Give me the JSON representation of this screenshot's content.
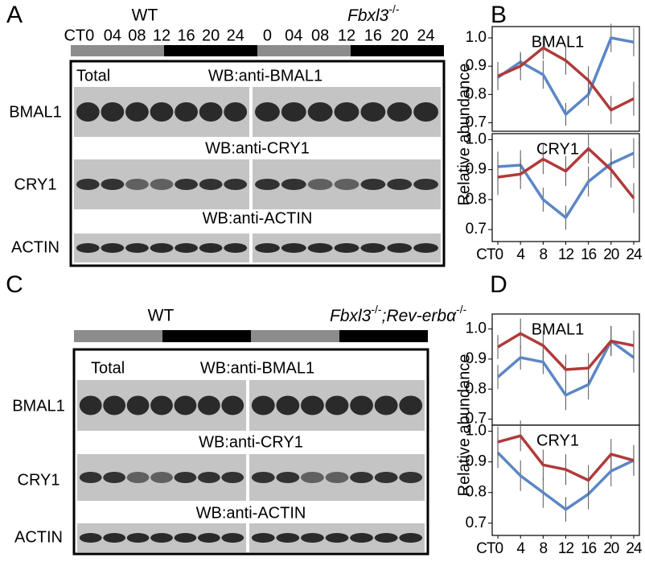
{
  "figure": {
    "blot_panels": [
      {
        "letter": "A",
        "wt_label": "WT",
        "mutant_label": [
          "Fbxl3",
          "-/-"
        ],
        "lanes": [
          "CT0",
          "04",
          "08",
          "12",
          "16",
          "20",
          "24",
          "0",
          "04",
          "08",
          "12",
          "16",
          "20",
          "24"
        ],
        "total": "Total",
        "rows": [
          {
            "header": "WB:anti-BMAL1",
            "label": "BMAL1"
          },
          {
            "header": "WB:anti-CRY1",
            "label": "CRY1"
          },
          {
            "header": "WB:anti-ACTIN",
            "label": "ACTIN"
          }
        ]
      },
      {
        "letter": "C",
        "wt_label": "WT",
        "mutant_label": [
          "Fbxl3",
          "-/-",
          ";Rev-erbα",
          "-/-"
        ],
        "total": "Total",
        "rows": [
          {
            "header": "WB:anti-BMAL1",
            "label": "BMAL1"
          },
          {
            "header": "WB:anti-CRY1",
            "label": "CRY1"
          },
          {
            "header": "WB:anti-ACTIN",
            "label": "ACTIN"
          }
        ]
      }
    ],
    "chart_panels": [
      {
        "letter": "B",
        "y_label": "Relative abundance"
      },
      {
        "letter": "D",
        "y_label": "Relative abundance"
      }
    ]
  },
  "chart_data": [
    {
      "type": "line",
      "title": "BMAL1",
      "x": [
        0,
        4,
        8,
        12,
        16,
        20,
        24
      ],
      "xlim": [
        -1,
        25
      ],
      "ylim": [
        0.67,
        1.04
      ],
      "yticks": [
        0.7,
        0.8,
        0.9,
        {
          "value": 1,
          "label": "1.0"
        }
      ],
      "series": [
        {
          "color": "#5b87c5",
          "values": [
            0.86,
            0.915,
            0.87,
            0.73,
            0.8,
            1.0,
            0.985
          ],
          "errors": [
            0.04,
            0.03,
            0.05,
            0.04,
            0.04,
            0.05,
            0.05
          ]
        },
        {
          "color": "#b03a3a",
          "values": [
            0.865,
            0.9,
            0.965,
            0.92,
            0.85,
            0.745,
            0.785
          ],
          "errors": [
            0.05,
            0.05,
            0.04,
            0.05,
            0.05,
            0.05,
            0.06
          ]
        }
      ]
    },
    {
      "type": "line",
      "title": "CRY1",
      "x": [
        0,
        4,
        8,
        12,
        16,
        20,
        24
      ],
      "xlim": [
        -1,
        25
      ],
      "ylim": [
        0.66,
        1.02
      ],
      "yticks": [
        0.7,
        0.8,
        0.9,
        {
          "value": 1,
          "label": "1.0"
        }
      ],
      "xticks": [
        {
          "value": 0,
          "label": "CT0"
        },
        4,
        8,
        12,
        16,
        20,
        24
      ],
      "series": [
        {
          "color": "#5b87c5",
          "values": [
            0.91,
            0.915,
            0.8,
            0.74,
            0.86,
            0.92,
            0.955
          ],
          "errors": [
            0.05,
            0.05,
            0.04,
            0.04,
            0.05,
            0.05,
            0.05
          ]
        },
        {
          "color": "#b03a3a",
          "values": [
            0.875,
            0.885,
            0.935,
            0.895,
            0.97,
            0.9,
            0.805
          ],
          "errors": [
            0.06,
            0.05,
            0.05,
            0.05,
            0.05,
            0.06,
            0.05
          ]
        }
      ]
    },
    {
      "type": "line",
      "title": "BMAL1",
      "x": [
        0,
        4,
        8,
        12,
        16,
        20,
        24
      ],
      "xlim": [
        -1,
        25
      ],
      "ylim": [
        0.68,
        1.05
      ],
      "yticks": [
        0.7,
        0.8,
        0.9,
        {
          "value": 1,
          "label": "1.0"
        }
      ],
      "series": [
        {
          "color": "#5b87c5",
          "values": [
            0.84,
            0.905,
            0.89,
            0.78,
            0.815,
            0.96,
            0.905
          ],
          "errors": [
            0.04,
            0.04,
            0.04,
            0.05,
            0.05,
            0.05,
            0.05
          ]
        },
        {
          "color": "#b03a3a",
          "values": [
            0.94,
            0.985,
            0.945,
            0.865,
            0.87,
            0.96,
            0.945
          ],
          "errors": [
            0.04,
            0.05,
            0.05,
            0.05,
            0.05,
            0.05,
            0.05
          ]
        }
      ]
    },
    {
      "type": "line",
      "title": "CRY1",
      "x": [
        0,
        4,
        8,
        12,
        16,
        20,
        24
      ],
      "xlim": [
        -1,
        25
      ],
      "ylim": [
        0.66,
        1.02
      ],
      "yticks": [
        0.7,
        0.8,
        0.9,
        {
          "value": 1,
          "label": "1.0"
        }
      ],
      "xticks": [
        {
          "value": 0,
          "label": "CT0"
        },
        4,
        8,
        12,
        16,
        20,
        24
      ],
      "series": [
        {
          "color": "#5b87c5",
          "values": [
            0.93,
            0.855,
            0.8,
            0.745,
            0.795,
            0.87,
            0.905
          ],
          "errors": [
            0.05,
            0.05,
            0.05,
            0.04,
            0.05,
            0.05,
            0.05
          ]
        },
        {
          "color": "#b03a3a",
          "values": [
            0.965,
            0.985,
            0.89,
            0.875,
            0.84,
            0.925,
            0.905
          ],
          "errors": [
            0.05,
            0.05,
            0.05,
            0.05,
            0.05,
            0.05,
            0.05
          ]
        }
      ]
    }
  ]
}
